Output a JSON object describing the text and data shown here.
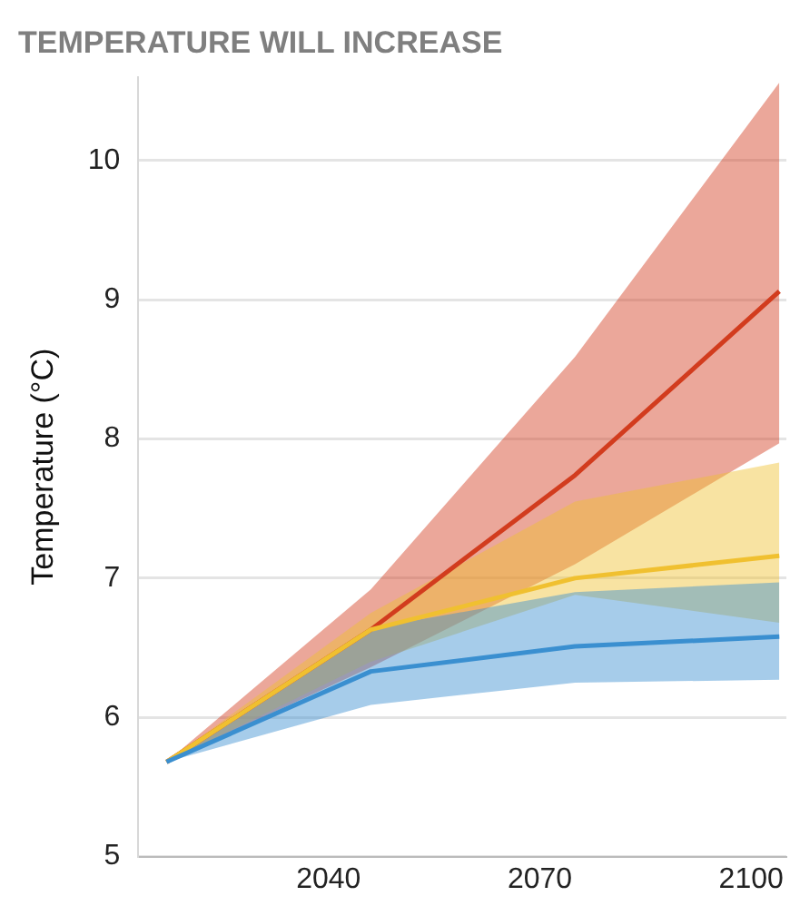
{
  "chart_data": {
    "type": "line",
    "title": "TEMPERATURE WILL INCREASE",
    "ylabel": "Temperature (°C)",
    "x": [
      2017,
      2046,
      2075,
      2104
    ],
    "series": [
      {
        "color": "#d23c1e",
        "values": [
          5.68,
          6.63,
          7.74,
          9.06
        ],
        "lower": [
          5.68,
          6.36,
          7.1,
          7.97
        ],
        "upper": [
          5.68,
          6.92,
          8.59,
          10.56
        ]
      },
      {
        "color": "#f0c030",
        "values": [
          5.68,
          6.63,
          7.0,
          7.16
        ],
        "lower": [
          5.68,
          6.4,
          6.88,
          6.68
        ],
        "upper": [
          5.68,
          6.75,
          7.55,
          7.83
        ]
      },
      {
        "color": "#3a8fd0",
        "values": [
          5.68,
          6.33,
          6.51,
          6.58
        ],
        "lower": [
          5.68,
          6.09,
          6.25,
          6.27
        ],
        "upper": [
          5.68,
          6.64,
          6.9,
          6.97
        ]
      }
    ],
    "xlim": [
      2013,
      2105
    ],
    "xticks": [
      2040,
      2070,
      2100
    ],
    "ylim": [
      5,
      10.6
    ],
    "yticks": [
      5,
      6,
      7,
      8,
      9,
      10
    ],
    "grid": "y",
    "marker": "none",
    "line_style": "solid"
  }
}
